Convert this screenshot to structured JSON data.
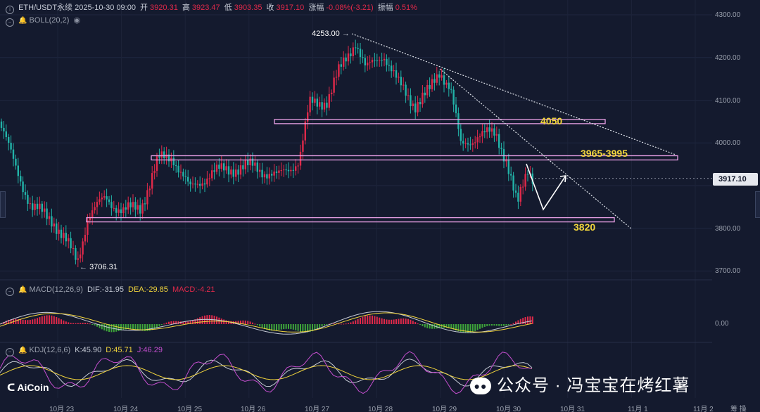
{
  "header": {
    "symbol": "ETH/USDT永续 2025-10-30 09:00",
    "open_label": "开",
    "open": "3920.31",
    "high_label": "高",
    "high": "3923.47",
    "low_label": "低",
    "low": "3903.35",
    "close_label": "收",
    "close": "3917.10",
    "change_label": "涨幅",
    "change": "-0.08%(-3.21)",
    "amp_label": "振幅",
    "amp": "0.51%"
  },
  "boll": {
    "label": "BOLL(20,2)"
  },
  "macd": {
    "label": "MACD(12,26,9)",
    "dif": "DIF:-31.95",
    "dea": "DEA:-29.85",
    "macd": "MACD:-4.21",
    "zero": "0.00"
  },
  "kdj": {
    "label": "KDJ(12,6,6)",
    "k": "K:45.90",
    "d": "D:45.71",
    "j": "J:46.29"
  },
  "y_axis": [
    "4300.00",
    "4200.00",
    "4100.00",
    "4000.00",
    "3800.00",
    "3700.00"
  ],
  "x_axis": [
    "10月 23",
    "10月 24",
    "10月 25",
    "10月 26",
    "10月 27",
    "10月 28",
    "10月 29",
    "10月 30",
    "10月 31",
    "11月 1",
    "11月 2",
    "筹 操"
  ],
  "current_price": "3917.10",
  "high_mark": "4253.00",
  "low_mark": "3706.31",
  "annotations": {
    "level_4050": "4050",
    "level_3965": "3965-3995",
    "level_3820": "3820"
  },
  "logo": "AiCoin",
  "watermark": "公众号 · 冯宝宝在烤红薯",
  "colors": {
    "bg": "#141a2e",
    "up": "#e0294a",
    "down": "#22b3a8",
    "annotation": "#f2d53c",
    "zone": "#e9a0e6"
  }
}
